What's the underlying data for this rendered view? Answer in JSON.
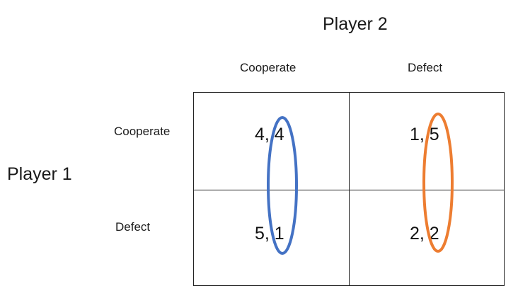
{
  "player2_label": "Player 2",
  "player1_label": "Player 1",
  "columns": [
    "Cooperate",
    "Defect"
  ],
  "rows": [
    "Cooperate",
    "Defect"
  ],
  "payoffs": {
    "coop_coop": "4, 4",
    "coop_defect": "1, 5",
    "defect_coop": "5, 1",
    "defect_defect": "2, 2"
  },
  "highlight_colors": {
    "column_cooperate": "#4472C4",
    "column_defect": "#ED7D31"
  }
}
